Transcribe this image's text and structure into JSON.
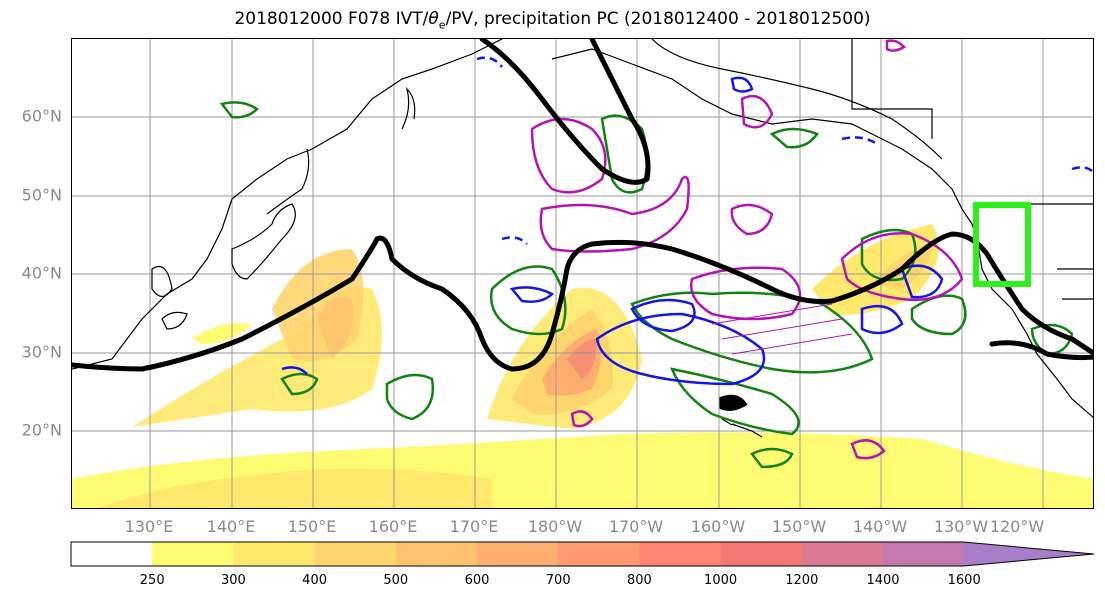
{
  "title": "2018012000 F078 IVT/",
  "title_theta": "θ",
  "title_sub": "e",
  "title_rest": "/PV, precipitation PC (2018012400 - 2018012500)",
  "map": {
    "lat_labels": [
      "60°N",
      "50°N",
      "40°N",
      "30°N",
      "20°N"
    ],
    "lon_labels": [
      "130°E",
      "140°E",
      "150°E",
      "160°E",
      "170°E",
      "180°W",
      "170°W",
      "160°W",
      "150°W",
      "140°W",
      "130°W",
      "120°W"
    ],
    "contours": {
      "pv_color": "#000000",
      "green_color": "#128312",
      "blue_color": "#1515e6",
      "magenta_color": "#b514b5",
      "box_color": "#2cf01a"
    }
  },
  "colorbar": {
    "ticks": [
      "250",
      "300",
      "400",
      "500",
      "600",
      "700",
      "800",
      "1000",
      "1200",
      "1400",
      "1600"
    ],
    "colors": [
      "#ffffff",
      "#fffc74",
      "#ffe96c",
      "#ffd56d",
      "#ffc26f",
      "#ffae70",
      "#ff9971",
      "#fc8671",
      "#f27975",
      "#dc7a92",
      "#c479b1",
      "#a87ec9"
    ]
  }
}
